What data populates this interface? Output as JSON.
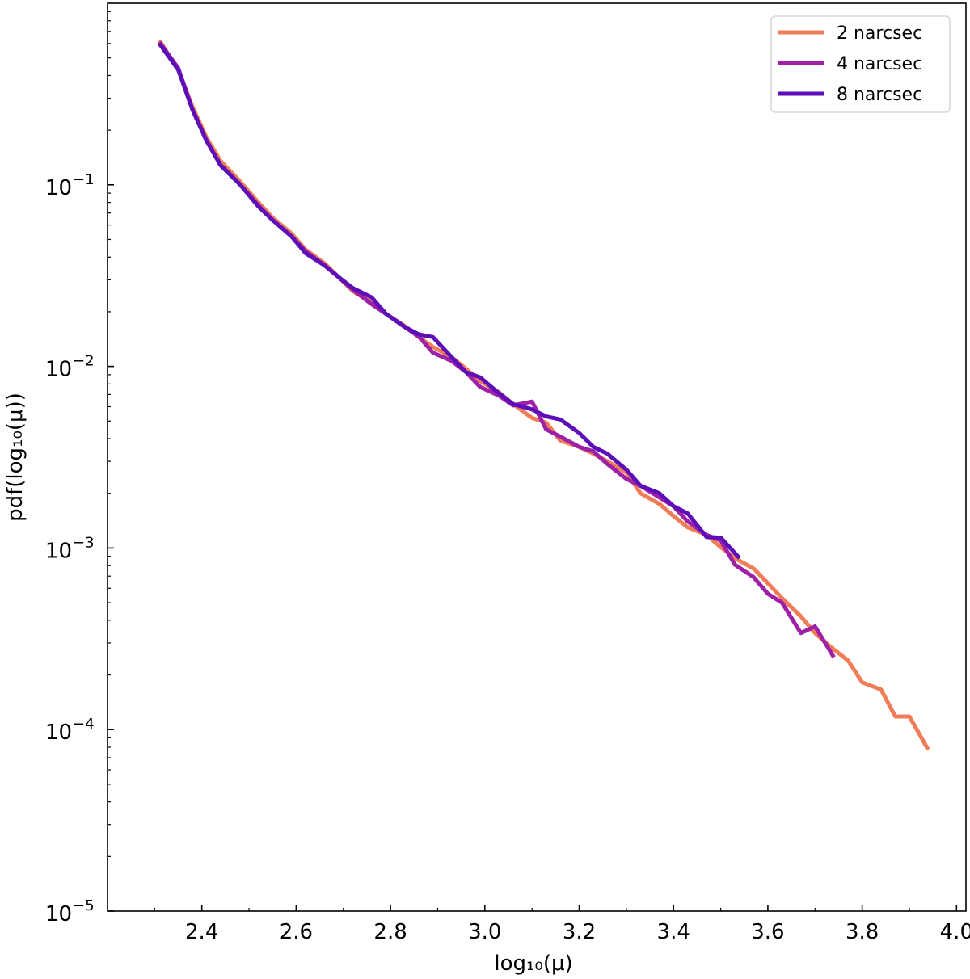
{
  "chart_data": {
    "type": "line",
    "xlabel": "log₁₀(μ)",
    "ylabel": "pdf(log₁₀(μ))",
    "xlim": [
      2.2,
      4.02
    ],
    "ylim": [
      1e-05,
      1.0
    ],
    "yscale": "log",
    "x_ticks": [
      2.4,
      2.6,
      2.8,
      3.0,
      3.2,
      3.4,
      3.6,
      3.8,
      4.0
    ],
    "x_tick_labels": [
      "2.4",
      "2.6",
      "2.8",
      "3.0",
      "3.2",
      "3.4",
      "3.6",
      "3.8",
      "4.0"
    ],
    "y_ticks": [
      {
        "value": 0.1,
        "base": "10",
        "exp": "−1"
      },
      {
        "value": 0.01,
        "base": "10",
        "exp": "−2"
      },
      {
        "value": 0.001,
        "base": "10",
        "exp": "−3"
      },
      {
        "value": 0.0001,
        "base": "10",
        "exp": "−4"
      },
      {
        "value": 1e-05,
        "base": "10",
        "exp": "−5"
      }
    ],
    "grid": false,
    "legend_position": "top-right",
    "series": [
      {
        "name": "2 narcsec",
        "color": "#f07d58",
        "x": [
          2.31,
          2.35,
          2.38,
          2.41,
          2.44,
          2.48,
          2.52,
          2.55,
          2.59,
          2.62,
          2.66,
          2.69,
          2.72,
          2.76,
          2.79,
          2.83,
          2.86,
          2.89,
          2.93,
          2.96,
          2.99,
          3.03,
          3.06,
          3.1,
          3.13,
          3.16,
          3.2,
          3.23,
          3.26,
          3.3,
          3.33,
          3.37,
          3.4,
          3.43,
          3.47,
          3.5,
          3.53,
          3.57,
          3.6,
          3.63,
          3.67,
          3.7,
          3.73,
          3.77,
          3.8,
          3.84,
          3.87,
          3.9,
          3.94
        ],
        "y": [
          0.625,
          0.43,
          0.27,
          0.182,
          0.135,
          0.105,
          0.08,
          0.066,
          0.054,
          0.044,
          0.037,
          0.031,
          0.026,
          0.0225,
          0.0195,
          0.0167,
          0.0145,
          0.0128,
          0.0112,
          0.0097,
          0.0083,
          0.0072,
          0.0062,
          0.0052,
          0.0049,
          0.0039,
          0.0036,
          0.0033,
          0.003,
          0.0026,
          0.002,
          0.00175,
          0.0015,
          0.0013,
          0.00118,
          0.00101,
          0.00088,
          0.00077,
          0.00064,
          0.00053,
          0.00042,
          0.00034,
          0.00029,
          0.00024,
          0.000182,
          0.000166,
          0.000118,
          0.000118,
          7.75e-05
        ]
      },
      {
        "name": "4 narcsec",
        "color": "#9e1fa8",
        "x": [
          2.31,
          2.35,
          2.38,
          2.41,
          2.44,
          2.48,
          2.52,
          2.55,
          2.59,
          2.62,
          2.66,
          2.69,
          2.72,
          2.76,
          2.79,
          2.83,
          2.86,
          2.89,
          2.93,
          2.96,
          2.99,
          3.03,
          3.06,
          3.1,
          3.13,
          3.16,
          3.2,
          3.23,
          3.26,
          3.3,
          3.33,
          3.37,
          3.4,
          3.43,
          3.47,
          3.5,
          3.53,
          3.57,
          3.6,
          3.63,
          3.67,
          3.7,
          3.74
        ],
        "y": [
          0.61,
          0.44,
          0.26,
          0.175,
          0.128,
          0.101,
          0.077,
          0.064,
          0.052,
          0.043,
          0.036,
          0.031,
          0.0265,
          0.022,
          0.0195,
          0.0165,
          0.0146,
          0.0119,
          0.0107,
          0.0093,
          0.0077,
          0.0069,
          0.0061,
          0.0064,
          0.0045,
          0.0041,
          0.0036,
          0.0034,
          0.0029,
          0.0024,
          0.0022,
          0.0019,
          0.0017,
          0.0014,
          0.00118,
          0.0011,
          0.00081,
          0.00069,
          0.00056,
          0.0005,
          0.00034,
          0.00037,
          0.00025
        ]
      },
      {
        "name": "8 narcsec",
        "color": "#5d0eb8",
        "x": [
          2.31,
          2.35,
          2.38,
          2.41,
          2.44,
          2.48,
          2.52,
          2.55,
          2.59,
          2.62,
          2.66,
          2.69,
          2.72,
          2.76,
          2.79,
          2.83,
          2.86,
          2.89,
          2.93,
          2.96,
          2.99,
          3.03,
          3.06,
          3.1,
          3.13,
          3.16,
          3.2,
          3.23,
          3.26,
          3.3,
          3.33,
          3.37,
          3.4,
          3.43,
          3.47,
          3.5,
          3.54
        ],
        "y": [
          0.6,
          0.43,
          0.26,
          0.175,
          0.128,
          0.101,
          0.076,
          0.064,
          0.052,
          0.042,
          0.036,
          0.031,
          0.027,
          0.024,
          0.0195,
          0.0165,
          0.015,
          0.0145,
          0.0112,
          0.0093,
          0.0087,
          0.0071,
          0.0062,
          0.0058,
          0.0053,
          0.0051,
          0.0043,
          0.0036,
          0.0033,
          0.0027,
          0.0022,
          0.002,
          0.0017,
          0.00155,
          0.00115,
          0.00114,
          0.00088
        ]
      }
    ]
  }
}
